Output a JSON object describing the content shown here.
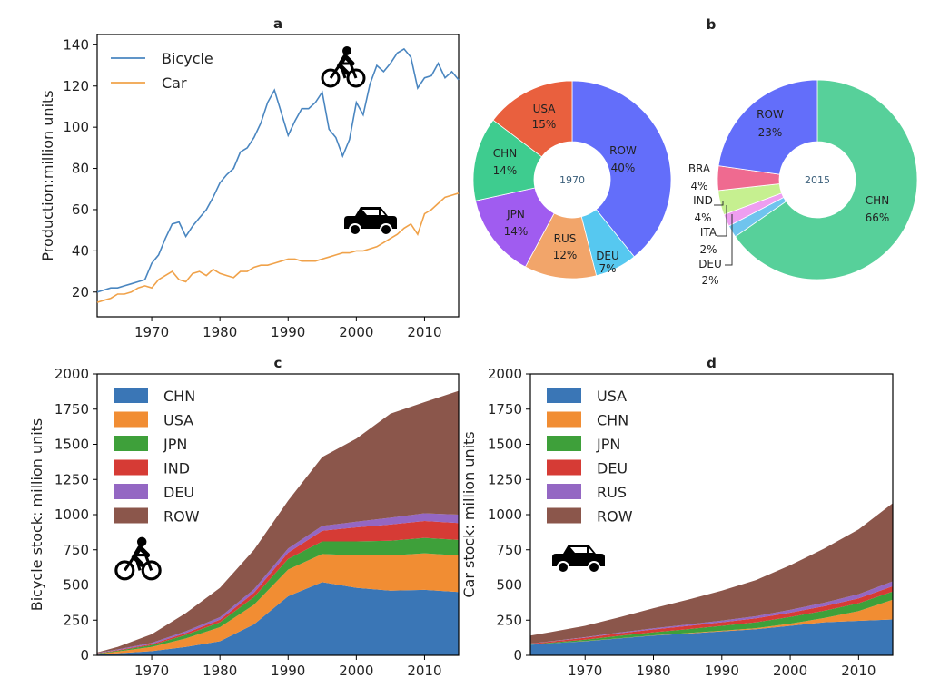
{
  "chart_data": [
    {
      "id": "a",
      "type": "line",
      "title": "a",
      "ylabel": "Production:million units",
      "xlabel": "",
      "xlim": [
        1962,
        2015
      ],
      "ylim": [
        8,
        145
      ],
      "xticks": [
        1970,
        1980,
        1990,
        2000,
        2010
      ],
      "yticks": [
        20,
        40,
        60,
        80,
        100,
        120,
        140
      ],
      "grid": false,
      "legend": "top-left",
      "icons": [
        "bicycle-icon",
        "car-icon"
      ],
      "x": [
        1962,
        1963,
        1964,
        1965,
        1966,
        1967,
        1968,
        1969,
        1970,
        1971,
        1972,
        1973,
        1974,
        1975,
        1976,
        1977,
        1978,
        1979,
        1980,
        1981,
        1982,
        1983,
        1984,
        1985,
        1986,
        1987,
        1988,
        1989,
        1990,
        1991,
        1992,
        1993,
        1994,
        1995,
        1996,
        1997,
        1998,
        1999,
        2000,
        2001,
        2002,
        2003,
        2004,
        2005,
        2006,
        2007,
        2008,
        2009,
        2010,
        2011,
        2012,
        2013,
        2014,
        2015
      ],
      "series": [
        {
          "name": "Bicycle",
          "color": "#4a86c0",
          "values": [
            20,
            21,
            22,
            22,
            23,
            24,
            25,
            26,
            34,
            38,
            46,
            53,
            54,
            47,
            52,
            56,
            60,
            66,
            73,
            77,
            80,
            88,
            90,
            95,
            102,
            112,
            118,
            107,
            96,
            103,
            109,
            109,
            112,
            117,
            99,
            95,
            86,
            94,
            112,
            106,
            121,
            130,
            127,
            131,
            136,
            138,
            134,
            119,
            124,
            125,
            131,
            124,
            127,
            123
          ]
        },
        {
          "name": "Car",
          "color": "#f0a24a",
          "values": [
            15,
            16,
            17,
            19,
            19,
            20,
            22,
            23,
            22,
            26,
            28,
            30,
            26,
            25,
            29,
            30,
            28,
            31,
            29,
            28,
            27,
            30,
            30,
            32,
            33,
            33,
            34,
            35,
            36,
            36,
            35,
            35,
            35,
            36,
            37,
            38,
            39,
            39,
            40,
            40,
            41,
            42,
            44,
            46,
            48,
            51,
            53,
            48,
            58,
            60,
            63,
            66,
            67,
            68
          ]
        }
      ]
    },
    {
      "id": "b",
      "type": "pie",
      "title": "b",
      "donuts": [
        {
          "center_label": "1970",
          "slices": [
            {
              "label": "ROW",
              "pct_label": "40%",
              "value": 40,
              "color": "#636efa"
            },
            {
              "label": "DEU",
              "pct_label": "7%",
              "value": 7,
              "color": "#56c8f0"
            },
            {
              "label": "RUS",
              "pct_label": "12%",
              "value": 12,
              "color": "#f2a56a"
            },
            {
              "label": "JPN",
              "pct_label": "14%",
              "value": 14,
              "color": "#a05cf0"
            },
            {
              "label": "CHN",
              "pct_label": "14%",
              "value": 14,
              "color": "#3ecc8f"
            },
            {
              "label": "USA",
              "pct_label": "15%",
              "value": 15,
              "color": "#e9603e"
            }
          ]
        },
        {
          "center_label": "2015",
          "slices": [
            {
              "label": "CHN",
              "pct_label": "66%",
              "value": 66,
              "color": "#57d09a"
            },
            {
              "label": "DEU",
              "pct_label": "2%",
              "value": 2,
              "color": "#6fc4ee"
            },
            {
              "label": "ITA",
              "pct_label": "2%",
              "value": 2,
              "color": "#ee9ef0"
            },
            {
              "label": "IND",
              "pct_label": "4%",
              "value": 4,
              "color": "#c6f090"
            },
            {
              "label": "BRA",
              "pct_label": "4%",
              "value": 4,
              "color": "#ef6a90"
            },
            {
              "label": "ROW",
              "pct_label": "23%",
              "value": 23,
              "color": "#636efa"
            }
          ]
        }
      ]
    },
    {
      "id": "c",
      "type": "area",
      "title": "c",
      "ylabel": "Bicycle stock: million units",
      "xlabel": "",
      "xlim": [
        1962,
        2015
      ],
      "ylim": [
        0,
        2000
      ],
      "xticks": [
        1970,
        1980,
        1990,
        2000,
        2010
      ],
      "yticks": [
        0,
        250,
        500,
        750,
        1000,
        1250,
        1500,
        1750,
        2000
      ],
      "grid": false,
      "legend": "top-left",
      "icons": [
        "bicycle-icon"
      ],
      "x": [
        1962,
        1965,
        1970,
        1975,
        1980,
        1985,
        1990,
        1995,
        2000,
        2005,
        2010,
        2015
      ],
      "series": [
        {
          "name": "CHN",
          "color": "#3a76b6",
          "values": [
            5,
            15,
            30,
            60,
            100,
            220,
            420,
            520,
            480,
            460,
            465,
            450
          ]
        },
        {
          "name": "USA",
          "color": "#f18d33",
          "values": [
            5,
            12,
            30,
            60,
            100,
            140,
            190,
            200,
            230,
            250,
            260,
            260
          ]
        },
        {
          "name": "JPN",
          "color": "#3ea03a",
          "values": [
            3,
            6,
            12,
            25,
            35,
            55,
            75,
            90,
            100,
            105,
            110,
            110
          ]
        },
        {
          "name": "IND",
          "color": "#d63b35",
          "values": [
            2,
            4,
            8,
            13,
            18,
            30,
            45,
            75,
            100,
            115,
            120,
            120
          ]
        },
        {
          "name": "DEU",
          "color": "#9467c3",
          "values": [
            2,
            5,
            9,
            13,
            18,
            25,
            30,
            35,
            40,
            48,
            55,
            60
          ]
        },
        {
          "name": "ROW",
          "color": "#8b564b",
          "values": [
            3,
            18,
            61,
            129,
            209,
            280,
            340,
            490,
            590,
            740,
            790,
            880
          ]
        }
      ]
    },
    {
      "id": "d",
      "type": "area",
      "title": "d",
      "ylabel": "Car stock: million units",
      "xlabel": "",
      "xlim": [
        1962,
        2015
      ],
      "ylim": [
        0,
        2000
      ],
      "xticks": [
        1970,
        1980,
        1990,
        2000,
        2010
      ],
      "yticks": [
        0,
        250,
        500,
        750,
        1000,
        1250,
        1500,
        1750,
        2000
      ],
      "grid": false,
      "legend": "top-left",
      "icons": [
        "car-icon"
      ],
      "x": [
        1962,
        1965,
        1970,
        1975,
        1980,
        1985,
        1990,
        1995,
        2000,
        2005,
        2010,
        2015
      ],
      "series": [
        {
          "name": "USA",
          "color": "#3a76b6",
          "values": [
            75,
            85,
            100,
            120,
            140,
            155,
            170,
            185,
            210,
            235,
            245,
            255
          ]
        },
        {
          "name": "CHN",
          "color": "#f18d33",
          "values": [
            0,
            0,
            1,
            1,
            2,
            3,
            5,
            8,
            15,
            30,
            70,
            140
          ]
        },
        {
          "name": "JPN",
          "color": "#3ea03a",
          "values": [
            3,
            5,
            10,
            18,
            22,
            28,
            35,
            42,
            48,
            52,
            55,
            58
          ]
        },
        {
          "name": "DEU",
          "color": "#d63b35",
          "values": [
            5,
            8,
            14,
            17,
            20,
            23,
            25,
            28,
            30,
            32,
            35,
            38
          ]
        },
        {
          "name": "RUS",
          "color": "#9467c3",
          "values": [
            1,
            2,
            4,
            6,
            8,
            10,
            12,
            15,
            20,
            25,
            30,
            35
          ]
        },
        {
          "name": "ROW",
          "color": "#8b564b",
          "values": [
            56,
            65,
            81,
            108,
            143,
            176,
            213,
            257,
            317,
            386,
            460,
            555
          ]
        }
      ]
    }
  ]
}
